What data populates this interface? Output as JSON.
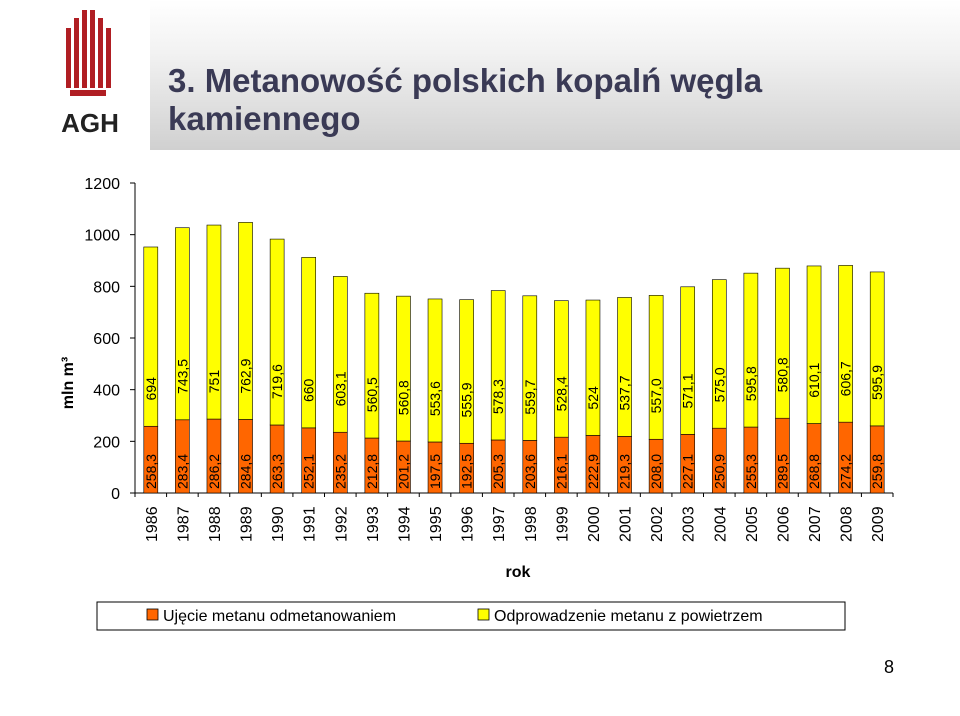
{
  "slide": {
    "title": "3. Metanowość polskich kopalń węgla kamiennego",
    "logo_text": "AGH",
    "page_number": "8"
  },
  "chart_data": {
    "type": "bar",
    "stacked": true,
    "xlabel": "rok",
    "ylabel": "mln m³",
    "ylim": [
      0,
      1200
    ],
    "yticks": [
      0,
      200,
      400,
      600,
      800,
      1000,
      1200
    ],
    "grid": false,
    "legend_position": "bottom",
    "categories": [
      "1986",
      "1987",
      "1988",
      "1989",
      "1990",
      "1991",
      "1992",
      "1993",
      "1994",
      "1995",
      "1996",
      "1997",
      "1998",
      "1999",
      "2000",
      "2001",
      "2002",
      "2003",
      "2004",
      "2005",
      "2006",
      "2007",
      "2008",
      "2009"
    ],
    "series": [
      {
        "name": "Ujęcie metanu odmetanowaniem",
        "color": "#ff6600",
        "values": [
          258.3,
          283.4,
          286.2,
          284.6,
          263.3,
          252.1,
          235.2,
          212.8,
          201.2,
          197.5,
          192.5,
          205.3,
          203.6,
          216.1,
          222.9,
          219.3,
          208.0,
          227.1,
          250.9,
          255.3,
          289.5,
          268.8,
          274.2,
          259.8
        ],
        "labels": [
          "258,3",
          "283,4",
          "286,2",
          "284,6",
          "263,3",
          "252,1",
          "235,2",
          "212,8",
          "201,2",
          "197,5",
          "192,5",
          "205,3",
          "203,6",
          "216,1",
          "222,9",
          "219,3",
          "208,0",
          "227,1",
          "250,9",
          "255,3",
          "289,5",
          "268,8",
          "274,2",
          "259,8"
        ]
      },
      {
        "name": "Odprowadzenie metanu z powietrzem",
        "color": "#ffff00",
        "values": [
          694,
          743.5,
          751,
          762.9,
          719.6,
          660,
          603.1,
          560.5,
          560.8,
          553.6,
          555.9,
          578.3,
          559.7,
          528.4,
          524,
          537.7,
          557.0,
          571.1,
          575.0,
          595.8,
          580.8,
          610.1,
          606.7,
          595.9
        ],
        "labels": [
          "694",
          "743,5",
          "751",
          "762,9",
          "719,6",
          "660",
          "603,1",
          "560,5",
          "560,8",
          "553,6",
          "555,9",
          "578,3",
          "559,7",
          "528,4",
          "524",
          "537,7",
          "557,0",
          "571,1",
          "575,0",
          "595,8",
          "580,8",
          "610,1",
          "606,7",
          "595,9"
        ]
      }
    ]
  }
}
